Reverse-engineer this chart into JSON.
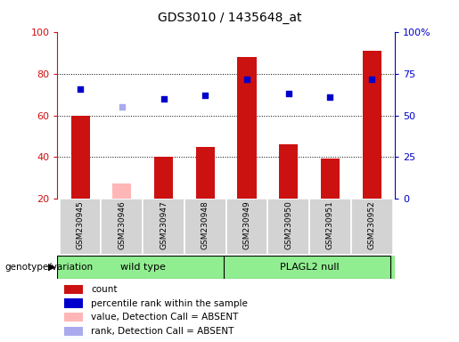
{
  "title": "GDS3010 / 1435648_at",
  "samples": [
    "GSM230945",
    "GSM230946",
    "GSM230947",
    "GSM230948",
    "GSM230949",
    "GSM230950",
    "GSM230951",
    "GSM230952"
  ],
  "count_values": [
    60,
    null,
    40,
    45,
    88,
    46,
    39,
    91
  ],
  "count_absent": [
    null,
    27,
    null,
    null,
    null,
    null,
    null,
    null
  ],
  "rank_values": [
    66,
    null,
    60,
    62,
    72,
    63,
    61,
    72
  ],
  "rank_absent": [
    null,
    55,
    null,
    null,
    null,
    null,
    null,
    null
  ],
  "ylim_left": [
    20,
    100
  ],
  "ylim_right": [
    0,
    100
  ],
  "yticks_left": [
    20,
    40,
    60,
    80,
    100
  ],
  "yticks_right": [
    0,
    25,
    50,
    75,
    100
  ],
  "yticklabels_right": [
    "0",
    "25",
    "50",
    "75",
    "100%"
  ],
  "bar_color": "#cc1111",
  "bar_absent_color": "#ffb6b6",
  "dot_color": "#0000cc",
  "dot_absent_color": "#aaaaee",
  "bar_width": 0.45,
  "dot_size": 22,
  "left_axis_color": "#cc1111",
  "right_axis_color": "#0000cc",
  "wt_group": [
    0,
    1,
    2,
    3
  ],
  "pl_group": [
    4,
    5,
    6,
    7
  ],
  "wt_label": "wild type",
  "pl_label": "PLAGL2 null",
  "group_color": "#90ee90",
  "group_label": "genotype/variation",
  "legend_items": [
    {
      "label": "count",
      "color": "#cc1111"
    },
    {
      "label": "percentile rank within the sample",
      "color": "#0000cc"
    },
    {
      "label": "value, Detection Call = ABSENT",
      "color": "#ffb6b6"
    },
    {
      "label": "rank, Detection Call = ABSENT",
      "color": "#aaaaee"
    }
  ],
  "figsize": [
    5.15,
    3.84
  ],
  "dpi": 100
}
